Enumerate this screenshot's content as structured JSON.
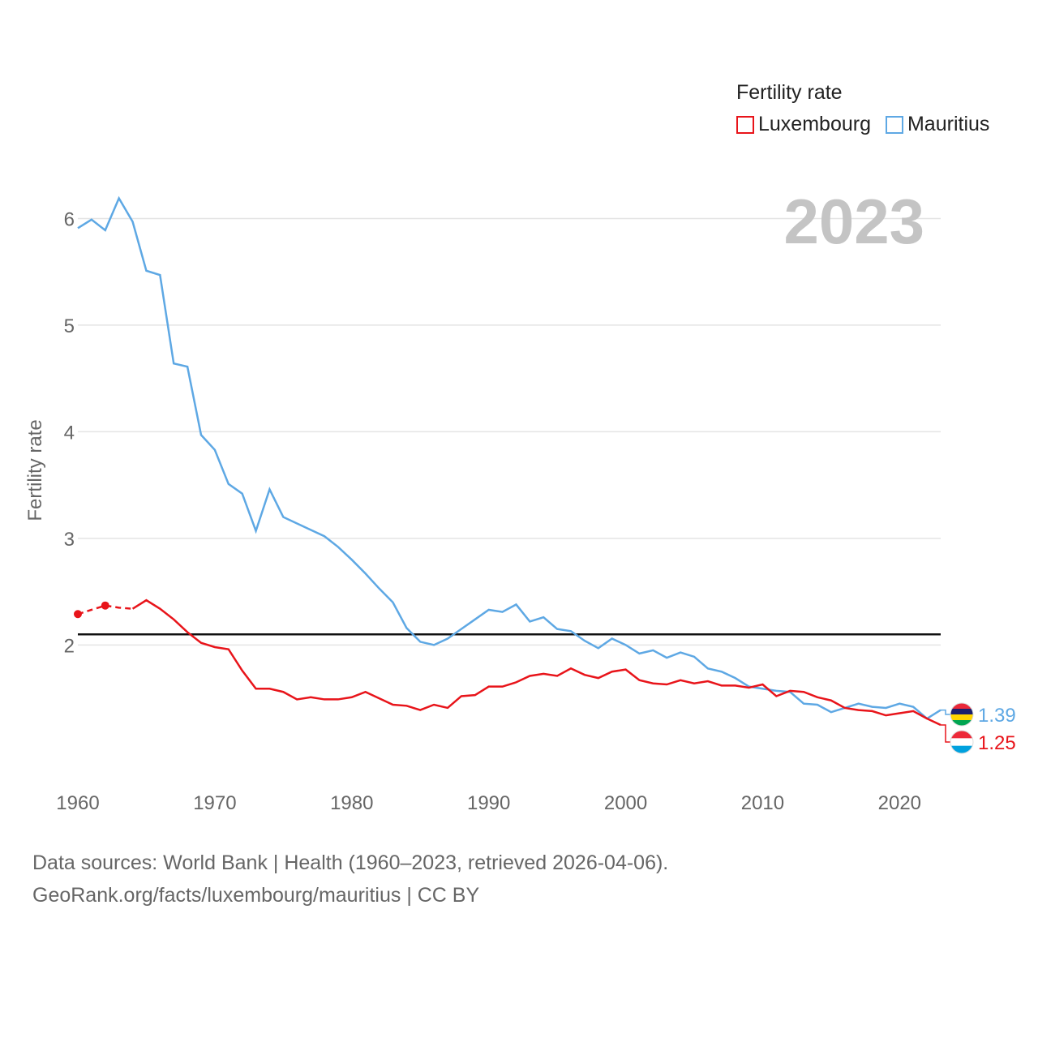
{
  "chart_data": {
    "type": "line",
    "title": "2023",
    "xlabel": "",
    "ylabel": "Fertility rate",
    "xlim": [
      1960,
      2023
    ],
    "ylim": [
      0.9,
      6.3
    ],
    "yticks": [
      2,
      3,
      4,
      5,
      6
    ],
    "xticks": [
      1960,
      1970,
      1980,
      1990,
      2000,
      2010,
      2020
    ],
    "x": [
      1960,
      1961,
      1962,
      1963,
      1964,
      1965,
      1966,
      1967,
      1968,
      1969,
      1970,
      1971,
      1972,
      1973,
      1974,
      1975,
      1976,
      1977,
      1978,
      1979,
      1980,
      1981,
      1982,
      1983,
      1984,
      1985,
      1986,
      1987,
      1988,
      1989,
      1990,
      1991,
      1992,
      1993,
      1994,
      1995,
      1996,
      1997,
      1998,
      1999,
      2000,
      2001,
      2002,
      2003,
      2004,
      2005,
      2006,
      2007,
      2008,
      2009,
      2010,
      2011,
      2012,
      2013,
      2014,
      2015,
      2016,
      2017,
      2018,
      2019,
      2020,
      2021,
      2022,
      2023
    ],
    "reference_line": {
      "y": 2.1,
      "color": "#111111"
    },
    "legend_title": "Fertility rate",
    "series": [
      {
        "name": "Luxembourg",
        "color": "#e8141a",
        "end_label": "1.25",
        "dashed_until": 1964,
        "markers": [
          1960,
          1962
        ],
        "values": [
          2.29,
          2.33,
          2.37,
          2.35,
          2.34,
          2.42,
          2.34,
          2.24,
          2.12,
          2.02,
          1.98,
          1.96,
          1.76,
          1.59,
          1.59,
          1.56,
          1.49,
          1.51,
          1.49,
          1.49,
          1.51,
          1.56,
          1.5,
          1.44,
          1.43,
          1.39,
          1.44,
          1.41,
          1.52,
          1.53,
          1.61,
          1.61,
          1.65,
          1.71,
          1.73,
          1.71,
          1.78,
          1.72,
          1.69,
          1.75,
          1.77,
          1.67,
          1.64,
          1.63,
          1.67,
          1.64,
          1.66,
          1.62,
          1.62,
          1.6,
          1.63,
          1.52,
          1.57,
          1.56,
          1.51,
          1.48,
          1.41,
          1.39,
          1.38,
          1.34,
          1.36,
          1.38,
          1.31,
          1.25
        ]
      },
      {
        "name": "Mauritius",
        "color": "#5ea8e4",
        "end_label": "1.39",
        "values": [
          5.91,
          5.99,
          5.89,
          6.19,
          5.97,
          5.51,
          5.47,
          4.64,
          4.61,
          3.97,
          3.83,
          3.51,
          3.42,
          3.07,
          3.46,
          3.2,
          3.14,
          3.08,
          3.02,
          2.92,
          2.8,
          2.67,
          2.53,
          2.4,
          2.16,
          2.03,
          2.0,
          2.06,
          2.15,
          2.24,
          2.33,
          2.31,
          2.38,
          2.22,
          2.26,
          2.15,
          2.13,
          2.04,
          1.97,
          2.06,
          2.0,
          1.92,
          1.95,
          1.88,
          1.93,
          1.89,
          1.78,
          1.75,
          1.69,
          1.61,
          1.59,
          1.57,
          1.56,
          1.45,
          1.44,
          1.37,
          1.41,
          1.45,
          1.42,
          1.41,
          1.45,
          1.42,
          1.31,
          1.39
        ]
      }
    ]
  },
  "source": {
    "line1": "Data sources: World Bank | Health (1960–2023, retrieved 2026-04-06).",
    "line2": "GeoRank.org/facts/luxembourg/mauritius | CC BY"
  }
}
